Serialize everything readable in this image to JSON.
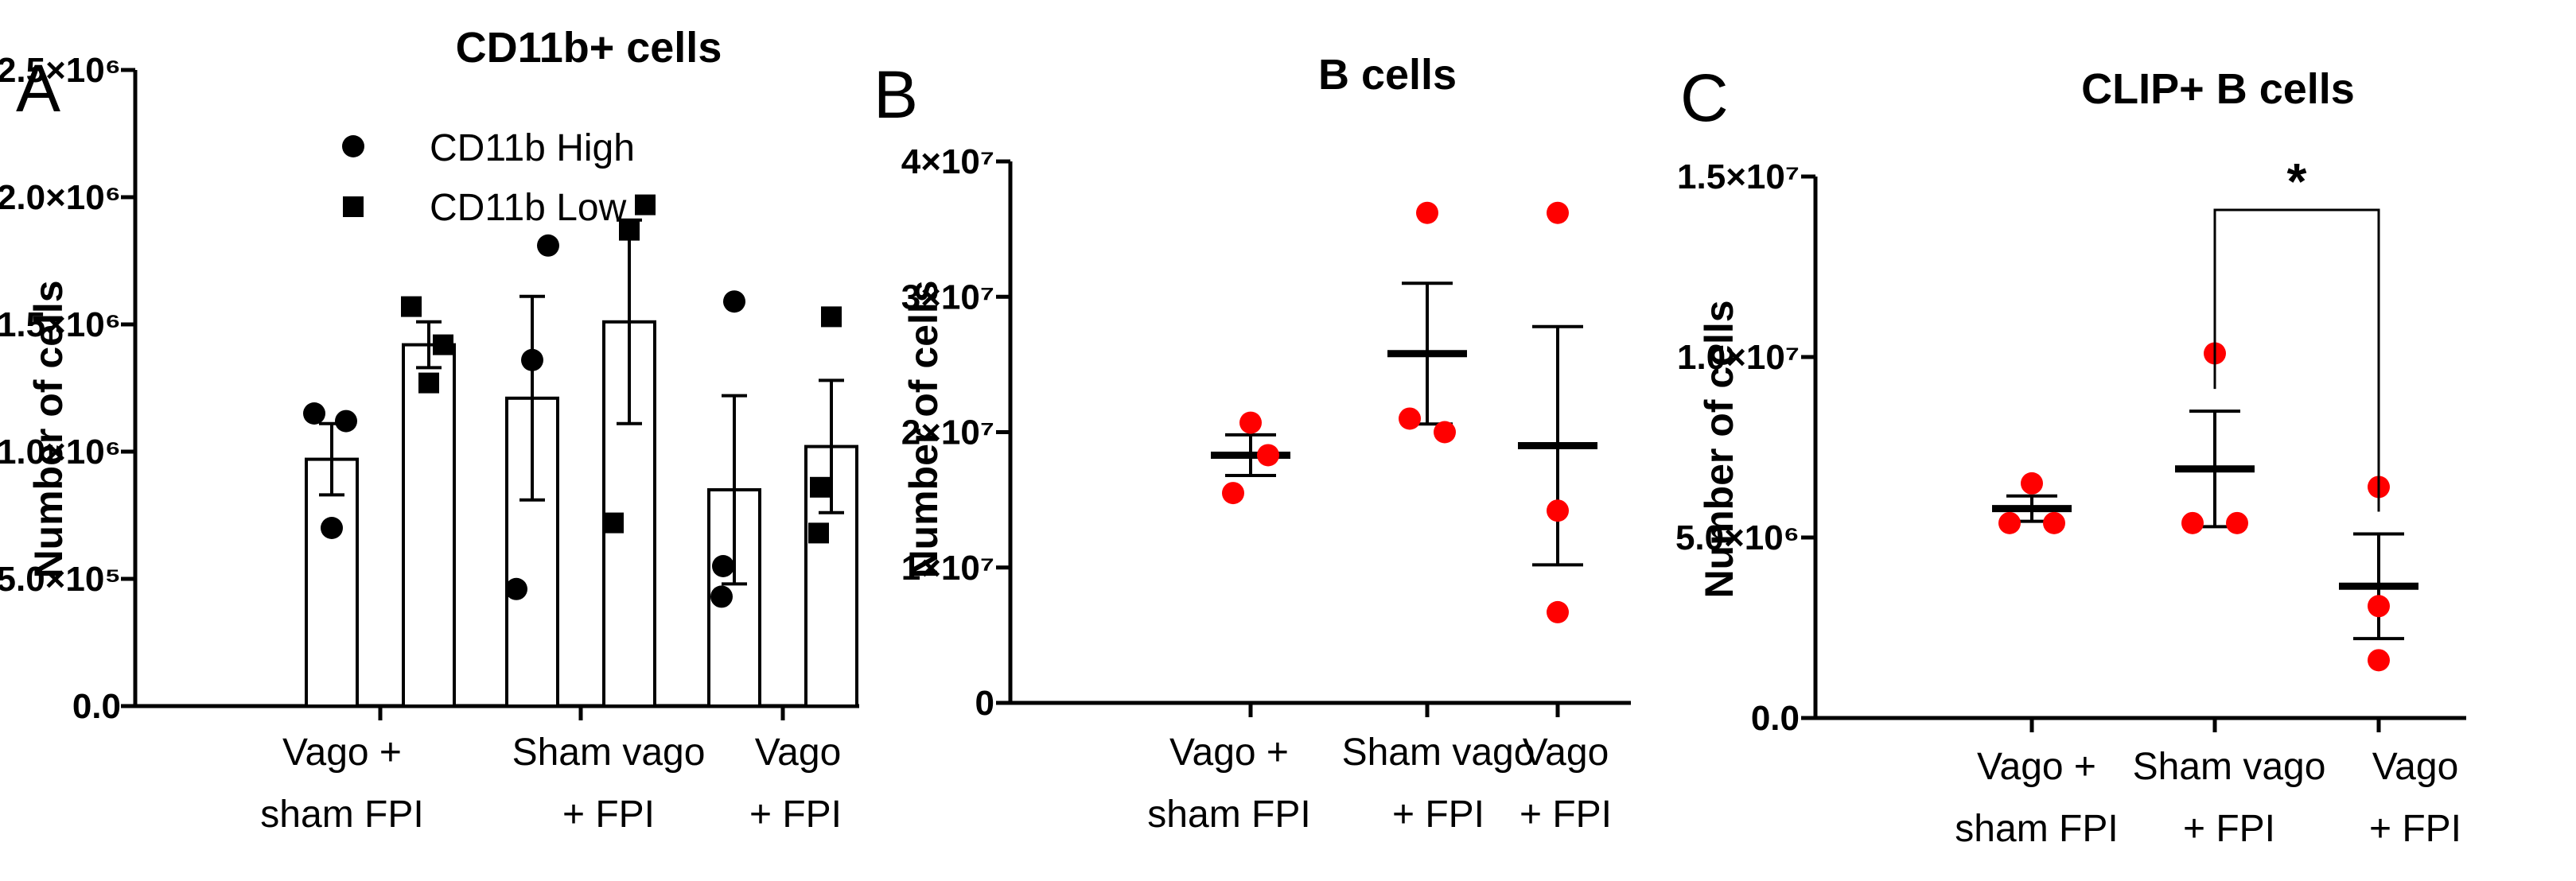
{
  "chart_data": [
    {
      "panel": "A",
      "type": "bar",
      "title": "CD11b+ cells",
      "ylabel": "Number of cells",
      "xlabel": "",
      "ylim": [
        0,
        2500000
      ],
      "yticks": [
        0,
        500000,
        1000000,
        1500000,
        2000000,
        2500000
      ],
      "ytick_labels": [
        "0.0",
        "5.0×10⁵",
        "1.0×10⁶",
        "1.5×10⁶",
        "2.0×10⁶",
        "2.5×10⁶"
      ],
      "categories": [
        {
          "line1": "Vago  +",
          "line2": "sham FPI"
        },
        {
          "line1": "Sham vago",
          "line2": "+ FPI"
        },
        {
          "line1": "Vago",
          "line2": "+ FPI"
        }
      ],
      "legend": "top-left",
      "series": [
        {
          "name": "CD11b High",
          "marker": "circle",
          "color": "#000000",
          "values": [
            970000,
            1210000,
            850000
          ],
          "sem": [
            140000,
            400000,
            370000
          ],
          "points": [
            [
              1150000,
              1120000,
              700000
            ],
            [
              1810000,
              1360000,
              460000
            ],
            [
              1590000,
              550000,
              430000
            ]
          ]
        },
        {
          "name": "CD11b Low",
          "marker": "square",
          "color": "#000000",
          "values": [
            1420000,
            1510000,
            1020000
          ],
          "sem": [
            90000,
            400000,
            260000
          ],
          "points": [
            [
              1570000,
              1420000,
              1270000
            ],
            [
              1970000,
              1870000,
              720000
            ],
            [
              1530000,
              860000,
              680000
            ]
          ]
        }
      ]
    },
    {
      "panel": "B",
      "type": "scatter",
      "title": "B cells",
      "ylabel": "Number of cells",
      "xlabel": "",
      "ylim": [
        0,
        40000000
      ],
      "yticks": [
        0,
        10000000,
        20000000,
        30000000,
        40000000
      ],
      "ytick_labels": [
        "0",
        "1×10⁷",
        "2×10⁷",
        "3×10⁷",
        "4×10⁷"
      ],
      "categories": [
        {
          "line1": "Vago  +",
          "line2": "sham FPI"
        },
        {
          "line1": "Sham vago",
          "line2": "+ FPI"
        },
        {
          "line1": "Vago",
          "line2": "+ FPI"
        }
      ],
      "point_color": "#ff0000",
      "groups": [
        {
          "mean": 18300000,
          "sem": 1500000,
          "points": [
            20700000,
            18300000,
            15500000
          ]
        },
        {
          "mean": 25800000,
          "sem": 5200000,
          "points": [
            36200000,
            21000000,
            20000000
          ]
        },
        {
          "mean": 19000000,
          "sem": 8800000,
          "points": [
            36200000,
            14200000,
            6700000
          ]
        }
      ]
    },
    {
      "panel": "C",
      "type": "scatter",
      "title": "CLIP+ B cells",
      "ylabel": "Number of cells",
      "xlabel": "",
      "ylim": [
        0,
        15000000
      ],
      "yticks": [
        0,
        5000000,
        10000000,
        15000000
      ],
      "ytick_labels": [
        "0.0",
        "5.0×10⁶",
        "1.0×10⁷",
        "1.5×10⁷"
      ],
      "categories": [
        {
          "line1": "Vago  +",
          "line2": "sham FPI"
        },
        {
          "line1": "Sham vago",
          "line2": "+ FPI"
        },
        {
          "line1": "Vago",
          "line2": "+ FPI"
        }
      ],
      "point_color": "#ff0000",
      "groups": [
        {
          "mean": 5800000,
          "sem": 350000,
          "points": [
            6500000,
            5400000,
            5400000
          ]
        },
        {
          "mean": 6900000,
          "sem": 1600000,
          "points": [
            10100000,
            5400000,
            5400000
          ]
        },
        {
          "mean": 3650000,
          "sem": 1450000,
          "points": [
            6400000,
            3100000,
            1600000
          ]
        }
      ],
      "significance": {
        "from": 1,
        "to": 2,
        "label": "*"
      }
    }
  ]
}
